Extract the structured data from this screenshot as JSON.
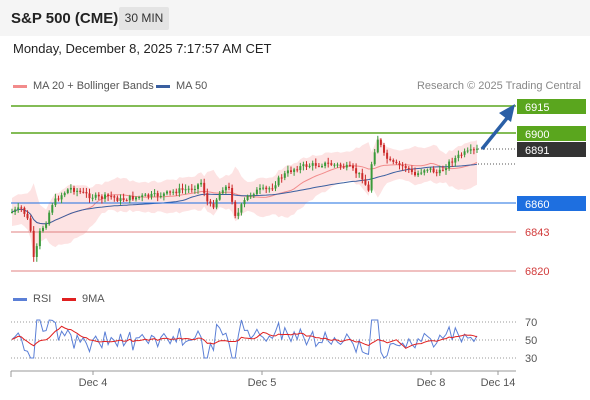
{
  "header": {
    "title": "S&P 500 (CME)",
    "timeframe": "30 MIN"
  },
  "datetime": "Monday, December 8, 2025 7:17:57 AM CET",
  "legend": {
    "bollinger": {
      "label": "MA 20 + Bollinger Bands",
      "color": "#f28b8b"
    },
    "ma50": {
      "label": "MA 50",
      "color": "#3a5fa0"
    },
    "copyright": "Research © 2025 Trading Central"
  },
  "levels": [
    {
      "value": "6915",
      "kind": "resistance",
      "color": "#5aa61e",
      "box": true
    },
    {
      "value": "6900",
      "kind": "resistance",
      "color": "#5aa61e",
      "box": true
    },
    {
      "value": "6891",
      "kind": "last",
      "color": "#333333",
      "box": true
    },
    {
      "value": "6860",
      "kind": "pivot",
      "color": "#1e6fe0",
      "box": true
    },
    {
      "value": "6843",
      "kind": "support",
      "color": "#d23c3c",
      "box": false
    },
    {
      "value": "6820",
      "kind": "support",
      "color": "#d23c3c",
      "box": false
    }
  ],
  "rsi": {
    "rsi_label": "RSI",
    "rsi_color": "#5b7fd6",
    "ma_label": "9MA",
    "ma_color": "#e02020",
    "ticks": [
      "70",
      "50",
      "30"
    ]
  },
  "x_axis": {
    "ticks": [
      "Dec 4",
      "Dec 5",
      "Dec 8",
      "Dec 14"
    ]
  },
  "colors": {
    "up": "#3a9a3a",
    "down": "#cc2a2a",
    "arrow": "#2a5fa6"
  }
}
